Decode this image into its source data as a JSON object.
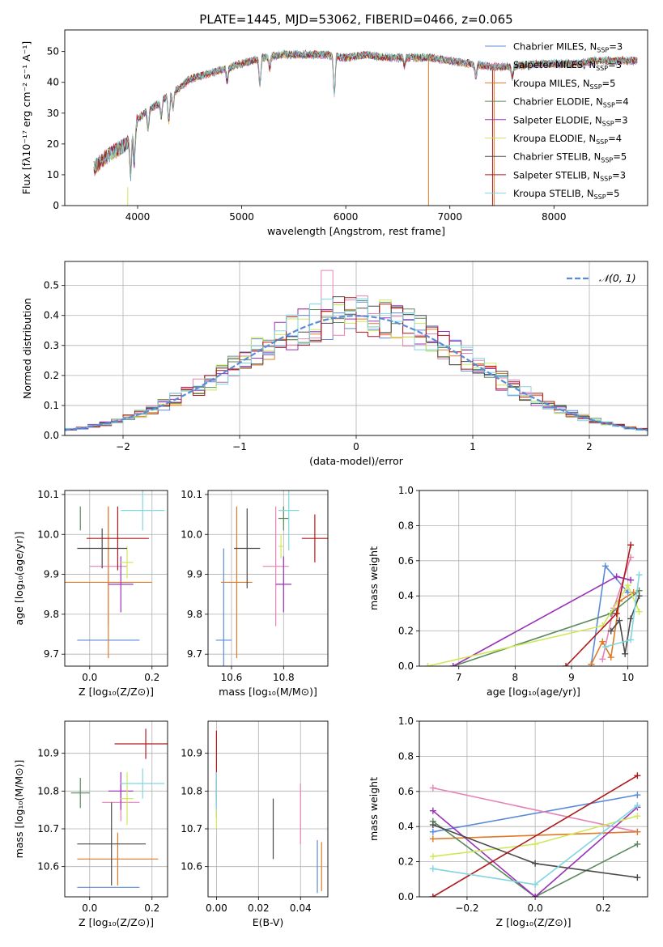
{
  "page_title": "PLATE=1445, MJD=53062, FIBERID=0466, z=0.065",
  "colors": {
    "chabrier_miles": "#5b8bd8",
    "salpeter_miles": "#e684b6",
    "kroupa_miles": "#e07a27",
    "chabrier_elodie": "#5a8a5e",
    "salpeter_elodie": "#9b30b8",
    "kroupa_elodie": "#cfe85a",
    "chabrier_stelib": "#4a4a4a",
    "salpeter_stelib": "#b0191c",
    "kroupa_stelib": "#7fd6df",
    "normal_curve": "#5b8bd8"
  },
  "chart_data": [
    {
      "id": "spectrum",
      "type": "line",
      "title": "PLATE=1445, MJD=53062, FIBERID=0466, z=0.065",
      "xlabel": "wavelength [Angstrom, rest frame]",
      "ylabel": "Flux [fλ10⁻¹⁷ erg cm⁻² s⁻¹ A⁻¹]",
      "xlim": [
        3300,
        8900
      ],
      "ylim": [
        0,
        57
      ],
      "xticks": [
        4000,
        5000,
        6000,
        7000,
        8000
      ],
      "yticks": [
        0,
        10,
        20,
        30,
        40,
        50
      ],
      "grid": false,
      "legend_position": "top-right",
      "legend": [
        {
          "key": "chabrier_miles",
          "label": "Chabrier MILES, N",
          "sub": "SSP",
          "tail": "=3"
        },
        {
          "key": "salpeter_miles",
          "label": "Salpeter MILES, N",
          "sub": "SSP",
          "tail": "=3"
        },
        {
          "key": "kroupa_miles",
          "label": "Kroupa MILES, N",
          "sub": "SSP",
          "tail": "=5"
        },
        {
          "key": "chabrier_elodie",
          "label": "Chabrier ELODIE, N",
          "sub": "SSP",
          "tail": "=4"
        },
        {
          "key": "salpeter_elodie",
          "label": "Salpeter ELODIE, N",
          "sub": "SSP",
          "tail": "=3"
        },
        {
          "key": "kroupa_elodie",
          "label": "Kroupa ELODIE, N",
          "sub": "SSP",
          "tail": "=4"
        },
        {
          "key": "chabrier_stelib",
          "label": "Chabrier STELIB, N",
          "sub": "SSP",
          "tail": "=5"
        },
        {
          "key": "salpeter_stelib",
          "label": "Salpeter STELIB, N",
          "sub": "SSP",
          "tail": "=3"
        },
        {
          "key": "kroupa_stelib",
          "label": "Kroupa STELIB, N",
          "sub": "SSP",
          "tail": "=5"
        }
      ],
      "continuum_x": [
        3580,
        3700,
        3800,
        3900,
        4000,
        4100,
        4200,
        4300,
        4400,
        4500,
        4600,
        4700,
        4800,
        4900,
        5000,
        5200,
        5400,
        5600,
        5800,
        6000,
        6200,
        6400,
        6600,
        6800,
        7000,
        7200,
        7400,
        7600,
        7800,
        8000,
        8200,
        8400,
        8600,
        8800
      ],
      "continuum_y": [
        12,
        16,
        18,
        20,
        28,
        31,
        33,
        36,
        38,
        41,
        42,
        43,
        44,
        45,
        46,
        48,
        49,
        49,
        49,
        48,
        49,
        48,
        48,
        48,
        47,
        46,
        45,
        45,
        46,
        46,
        46,
        47,
        47,
        47
      ],
      "model_drops": [
        {
          "key": "kroupa_elodie",
          "x": 3905,
          "y_from": 6
        },
        {
          "key": "kroupa_miles",
          "x": 6795,
          "y_from": 47
        },
        {
          "key": "salpeter_stelib",
          "x": 7410,
          "y_from": 44
        },
        {
          "key": "kroupa_miles",
          "x": 7425,
          "y_from": 44
        }
      ]
    },
    {
      "id": "residuals",
      "type": "bar",
      "xlabel": "(data-model)/error",
      "ylabel": "Normed distribution",
      "xlim": [
        -2.5,
        2.5
      ],
      "ylim": [
        0,
        0.58
      ],
      "xticks": [
        -2,
        -1,
        0,
        1,
        2
      ],
      "yticks": [
        0.0,
        0.1,
        0.2,
        0.3,
        0.4,
        0.5
      ],
      "grid": true,
      "legend_position": "top-right",
      "legend_label": "𝒩(0, 1)",
      "bin_edges_start": -2.5,
      "bin_width": 0.1,
      "bin_count": 50,
      "normal_mean": 0,
      "normal_sd": 1
    },
    {
      "id": "age_vs_Z",
      "type": "scatter",
      "xlabel": "Z [log₁₀(Z/Z⊙)]",
      "ylabel": "age  [log₁₀(age/yr)]",
      "xlim": [
        -0.08,
        0.25
      ],
      "ylim": [
        9.67,
        10.11
      ],
      "xticks": [
        0.0,
        0.2
      ],
      "yticks": [
        9.7,
        9.8,
        9.9,
        10.0,
        10.1
      ],
      "grid": true,
      "points": [
        {
          "key": "chabrier_miles",
          "x": 0.06,
          "xerr": 0.1,
          "y": 9.735,
          "yerr": 0.0
        },
        {
          "key": "salpeter_miles",
          "x": 0.06,
          "xerr": 0.06,
          "y": 9.92,
          "yerr": 0.15
        },
        {
          "key": "kroupa_miles",
          "x": 0.06,
          "xerr": 0.14,
          "y": 9.88,
          "yerr": 0.19
        },
        {
          "key": "chabrier_elodie",
          "x": -0.03,
          "xerr": 0.0,
          "y": 10.04,
          "yerr": 0.03
        },
        {
          "key": "salpeter_elodie",
          "x": 0.1,
          "xerr": 0.04,
          "y": 9.875,
          "yerr": 0.07
        },
        {
          "key": "kroupa_elodie",
          "x": 0.12,
          "xerr": 0.02,
          "y": 9.93,
          "yerr": 0.04
        },
        {
          "key": "chabrier_stelib",
          "x": 0.04,
          "xerr": 0.08,
          "y": 9.965,
          "yerr": 0.05
        },
        {
          "key": "salpeter_stelib",
          "x": 0.09,
          "xerr": 0.1,
          "y": 9.99,
          "yerr": 0.08
        },
        {
          "key": "kroupa_stelib",
          "x": 0.17,
          "xerr": 0.07,
          "y": 10.06,
          "yerr": 0.05
        }
      ]
    },
    {
      "id": "age_vs_mass",
      "type": "scatter",
      "xlabel": "mass [log₁₀(M/M⊙)]",
      "ylabel": "",
      "xlim": [
        10.51,
        10.97
      ],
      "ylim": [
        9.67,
        10.11
      ],
      "xticks": [
        10.6,
        10.8
      ],
      "yticks": [
        9.7,
        9.8,
        9.9,
        10.0,
        10.1
      ],
      "grid": true,
      "points": [
        {
          "key": "chabrier_miles",
          "x": 10.57,
          "xerr": 0.03,
          "y": 9.735,
          "yerr": 0.23
        },
        {
          "key": "salpeter_miles",
          "x": 10.77,
          "xerr": 0.05,
          "y": 9.92,
          "yerr": 0.15
        },
        {
          "key": "kroupa_miles",
          "x": 10.62,
          "xerr": 0.06,
          "y": 9.88,
          "yerr": 0.19
        },
        {
          "key": "chabrier_elodie",
          "x": 10.8,
          "xerr": 0.02,
          "y": 10.04,
          "yerr": 0.03
        },
        {
          "key": "salpeter_elodie",
          "x": 10.8,
          "xerr": 0.03,
          "y": 9.875,
          "yerr": 0.07
        },
        {
          "key": "kroupa_elodie",
          "x": 10.79,
          "xerr": 0.01,
          "y": 9.97,
          "yerr": 0.03
        },
        {
          "key": "chabrier_stelib",
          "x": 10.66,
          "xerr": 0.05,
          "y": 9.965,
          "yerr": 0.1
        },
        {
          "key": "salpeter_stelib",
          "x": 10.92,
          "xerr": 0.05,
          "y": 9.99,
          "yerr": 0.06
        },
        {
          "key": "kroupa_stelib",
          "x": 10.82,
          "xerr": 0.04,
          "y": 10.06,
          "yerr": 0.1
        }
      ]
    },
    {
      "id": "weight_vs_age",
      "type": "line",
      "xlabel": "age  [log₁₀(age/yr)]",
      "ylabel": "mass weight",
      "xlim": [
        6.3,
        10.35
      ],
      "ylim": [
        0,
        1.0
      ],
      "xticks": [
        7,
        8,
        9,
        10
      ],
      "yticks": [
        0.0,
        0.2,
        0.4,
        0.6,
        0.8,
        1.0
      ],
      "grid": true,
      "series": [
        {
          "key": "chabrier_miles",
          "x": [
            9.35,
            9.6,
            10.0
          ],
          "y": [
            0.01,
            0.57,
            0.42
          ]
        },
        {
          "key": "salpeter_miles",
          "x": [
            9.55,
            9.75,
            10.05
          ],
          "y": [
            0.04,
            0.33,
            0.62
          ]
        },
        {
          "key": "kroupa_miles",
          "x": [
            9.35,
            9.55,
            9.7,
            9.85,
            10.1
          ],
          "y": [
            0.01,
            0.14,
            0.05,
            0.37,
            0.42
          ]
        },
        {
          "key": "chabrier_elodie",
          "x": [
            6.9,
            9.7,
            10.2
          ],
          "y": [
            0.0,
            0.3,
            0.43
          ]
        },
        {
          "key": "salpeter_elodie",
          "x": [
            6.9,
            9.8,
            10.05
          ],
          "y": [
            0.0,
            0.51,
            0.49
          ]
        },
        {
          "key": "kroupa_elodie",
          "x": [
            6.45,
            9.55,
            10.0,
            10.2
          ],
          "y": [
            0.0,
            0.23,
            0.46,
            0.31
          ]
        },
        {
          "key": "chabrier_stelib",
          "x": [
            9.7,
            9.85,
            9.95,
            10.05,
            10.2
          ],
          "y": [
            0.2,
            0.26,
            0.07,
            0.27,
            0.4
          ]
        },
        {
          "key": "salpeter_stelib",
          "x": [
            8.9,
            9.8,
            10.05
          ],
          "y": [
            0.0,
            0.3,
            0.69
          ]
        },
        {
          "key": "kroupa_stelib",
          "x": [
            9.6,
            10.05,
            10.2
          ],
          "y": [
            0.11,
            0.15,
            0.52
          ]
        }
      ]
    },
    {
      "id": "mass_vs_Z",
      "type": "scatter",
      "xlabel": "Z [log₁₀(Z/Z⊙)]",
      "ylabel": "mass [log₁₀(M/M⊙)]",
      "xlim": [
        -0.08,
        0.25
      ],
      "ylim": [
        10.52,
        10.985
      ],
      "xticks": [
        0.0,
        0.2
      ],
      "yticks": [
        10.6,
        10.7,
        10.8,
        10.9
      ],
      "grid": true,
      "points": [
        {
          "key": "chabrier_miles",
          "x": 0.06,
          "xerr": 0.1,
          "y": 10.545,
          "yerr": 0.0
        },
        {
          "key": "salpeter_miles",
          "x": 0.1,
          "xerr": 0.06,
          "y": 10.77,
          "yerr": 0.05
        },
        {
          "key": "kroupa_miles",
          "x": 0.09,
          "xerr": 0.13,
          "y": 10.62,
          "yerr": 0.07
        },
        {
          "key": "chabrier_elodie",
          "x": -0.03,
          "xerr": 0.03,
          "y": 10.795,
          "yerr": 0.04
        },
        {
          "key": "salpeter_elodie",
          "x": 0.1,
          "xerr": 0.04,
          "y": 10.8,
          "yerr": 0.05
        },
        {
          "key": "kroupa_elodie",
          "x": 0.12,
          "xerr": 0.02,
          "y": 10.78,
          "yerr": 0.07
        },
        {
          "key": "chabrier_stelib",
          "x": 0.07,
          "xerr": 0.11,
          "y": 10.66,
          "yerr": 0.11
        },
        {
          "key": "salpeter_stelib",
          "x": 0.18,
          "xerr": 0.1,
          "y": 10.925,
          "yerr": 0.04
        },
        {
          "key": "kroupa_stelib",
          "x": 0.17,
          "xerr": 0.07,
          "y": 10.82,
          "yerr": 0.04
        }
      ]
    },
    {
      "id": "mass_vs_ebv",
      "type": "scatter",
      "xlabel": "E(B-V)",
      "ylabel": "",
      "xlim": [
        -0.004,
        0.053
      ],
      "ylim": [
        10.52,
        10.985
      ],
      "xticks": [
        0.0,
        0.02,
        0.04
      ],
      "yticks": [
        10.6,
        10.7,
        10.8,
        10.9
      ],
      "grid": true,
      "points": [
        {
          "key": "chabrier_miles",
          "x": 0.048,
          "xerr": 0,
          "y": 10.6,
          "yerr": 0.07
        },
        {
          "key": "salpeter_miles",
          "x": 0.04,
          "xerr": 0,
          "y": 10.74,
          "yerr": 0.08
        },
        {
          "key": "kroupa_miles",
          "x": 0.05,
          "xerr": 0,
          "y": 10.6,
          "yerr": 0.065
        },
        {
          "key": "chabrier_elodie",
          "x": 0.0,
          "xerr": 0,
          "y": 10.78,
          "yerr": 0.05
        },
        {
          "key": "salpeter_elodie",
          "x": 0.0,
          "xerr": 0,
          "y": 10.8,
          "yerr": 0.04
        },
        {
          "key": "kroupa_elodie",
          "x": 0.0,
          "xerr": 0,
          "y": 10.74,
          "yerr": 0.04
        },
        {
          "key": "chabrier_stelib",
          "x": 0.027,
          "xerr": 0,
          "y": 10.7,
          "yerr": 0.08
        },
        {
          "key": "salpeter_stelib",
          "x": 0.0,
          "xerr": 0,
          "y": 10.9,
          "yerr": 0.06
        },
        {
          "key": "kroupa_stelib",
          "x": 0.0,
          "xerr": 0,
          "y": 10.8,
          "yerr": 0.05
        }
      ]
    },
    {
      "id": "weight_vs_Z",
      "type": "line",
      "xlabel": "Z [log₁₀(Z/Z⊙)]",
      "ylabel": "mass weight",
      "xlim": [
        -0.34,
        0.33
      ],
      "ylim": [
        0,
        1.0
      ],
      "xticks": [
        -0.2,
        0.0,
        0.2
      ],
      "yticks": [
        0.0,
        0.2,
        0.4,
        0.6,
        0.8,
        1.0
      ],
      "grid": true,
      "series": [
        {
          "key": "chabrier_miles",
          "x": [
            -0.3,
            0.3
          ],
          "y": [
            0.37,
            0.58
          ]
        },
        {
          "key": "salpeter_miles",
          "x": [
            -0.3,
            0.3
          ],
          "y": [
            0.62,
            0.37
          ]
        },
        {
          "key": "kroupa_miles",
          "x": [
            -0.3,
            0.3
          ],
          "y": [
            0.33,
            0.37
          ]
        },
        {
          "key": "chabrier_elodie",
          "x": [
            -0.3,
            0.0,
            0.3
          ],
          "y": [
            0.43,
            0.0,
            0.3
          ]
        },
        {
          "key": "salpeter_elodie",
          "x": [
            -0.3,
            0.0,
            0.3
          ],
          "y": [
            0.49,
            0.0,
            0.51
          ]
        },
        {
          "key": "kroupa_elodie",
          "x": [
            -0.3,
            0.0,
            0.3
          ],
          "y": [
            0.23,
            0.3,
            0.46
          ]
        },
        {
          "key": "chabrier_stelib",
          "x": [
            -0.3,
            0.0,
            0.3
          ],
          "y": [
            0.41,
            0.19,
            0.11
          ]
        },
        {
          "key": "salpeter_stelib",
          "x": [
            -0.3,
            0.3
          ],
          "y": [
            0.0,
            0.69
          ]
        },
        {
          "key": "kroupa_stelib",
          "x": [
            -0.3,
            0.0,
            0.3
          ],
          "y": [
            0.16,
            0.07,
            0.52
          ]
        }
      ]
    }
  ]
}
